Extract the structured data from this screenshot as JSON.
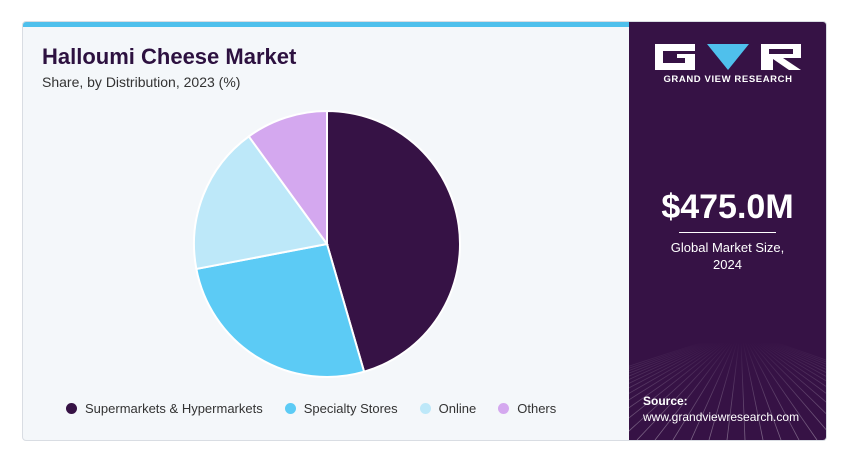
{
  "header": {
    "title": "Halloumi Cheese Market",
    "subtitle": "Share, by Distribution, 2023 (%)"
  },
  "chart_data": {
    "type": "pie",
    "title": "Halloumi Cheese Market",
    "subtitle": "Share, by Distribution, 2023 (%)",
    "categories": [
      "Supermarkets & Hypermarkets",
      "Specialty Stores",
      "Online",
      "Others"
    ],
    "values": [
      45.5,
      26.5,
      18,
      10
    ],
    "colors": [
      "#361245",
      "#5ccbf5",
      "#bde8f9",
      "#d4a8ef"
    ],
    "start_angle_deg": 0,
    "direction": "clockwise",
    "legend_position": "bottom"
  },
  "brand": {
    "logo_text": "GRAND VIEW RESEARCH"
  },
  "stat": {
    "value": "$475.0M",
    "label_line1": "Global Market Size,",
    "label_line2": "2024"
  },
  "source": {
    "title": "Source:",
    "url": "www.grandviewresearch.com"
  },
  "colors": {
    "panel_bg": "#361245",
    "accent": "#4fc0ec",
    "title": "#2d1140"
  }
}
